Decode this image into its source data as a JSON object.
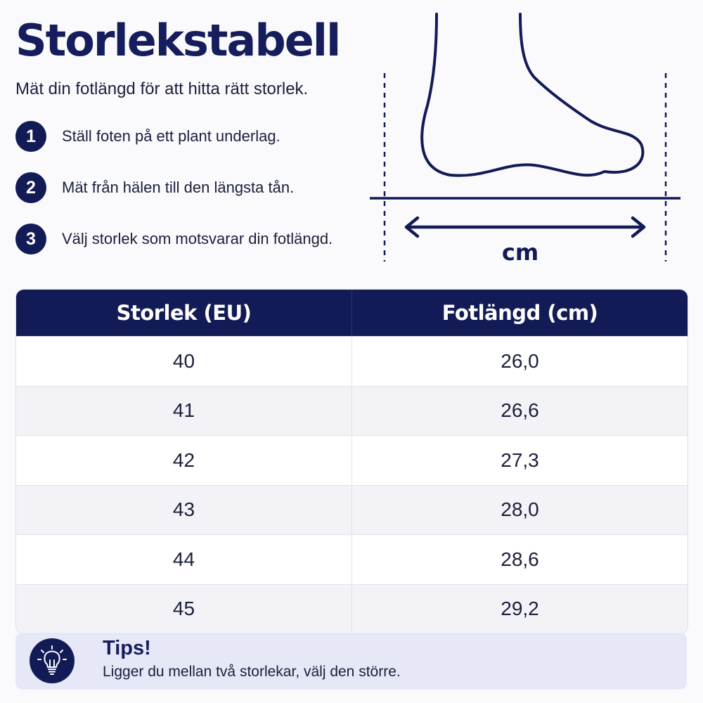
{
  "header": {
    "title": "Storlekstabell",
    "subtitle": "Mät din fotlängd för att hitta rätt storlek."
  },
  "steps": [
    {
      "number": "1",
      "text": "Ställ foten på ett plant underlag."
    },
    {
      "number": "2",
      "text": "Mät från hälen till den längsta tån."
    },
    {
      "number": "3",
      "text": "Välj storlek som motsvarar din fotlängd."
    }
  ],
  "illustration": {
    "unit_label": "cm",
    "icon": "foot-measure-icon"
  },
  "table": {
    "headers": [
      "Storlek (EU)",
      "Fotlängd (cm)"
    ],
    "rows": [
      [
        "40",
        "26,0"
      ],
      [
        "41",
        "26,6"
      ],
      [
        "42",
        "27,3"
      ],
      [
        "43",
        "28,0"
      ],
      [
        "44",
        "28,6"
      ],
      [
        "45",
        "29,2"
      ]
    ]
  },
  "tip": {
    "title": "Tips!",
    "text": "Ligger du mellan två storlekar, välj den större.",
    "icon": "lightbulb-icon"
  },
  "colors": {
    "primary": "#131b56",
    "tip_background": "#e6e7f7",
    "row_alt": "#f3f3f7"
  }
}
